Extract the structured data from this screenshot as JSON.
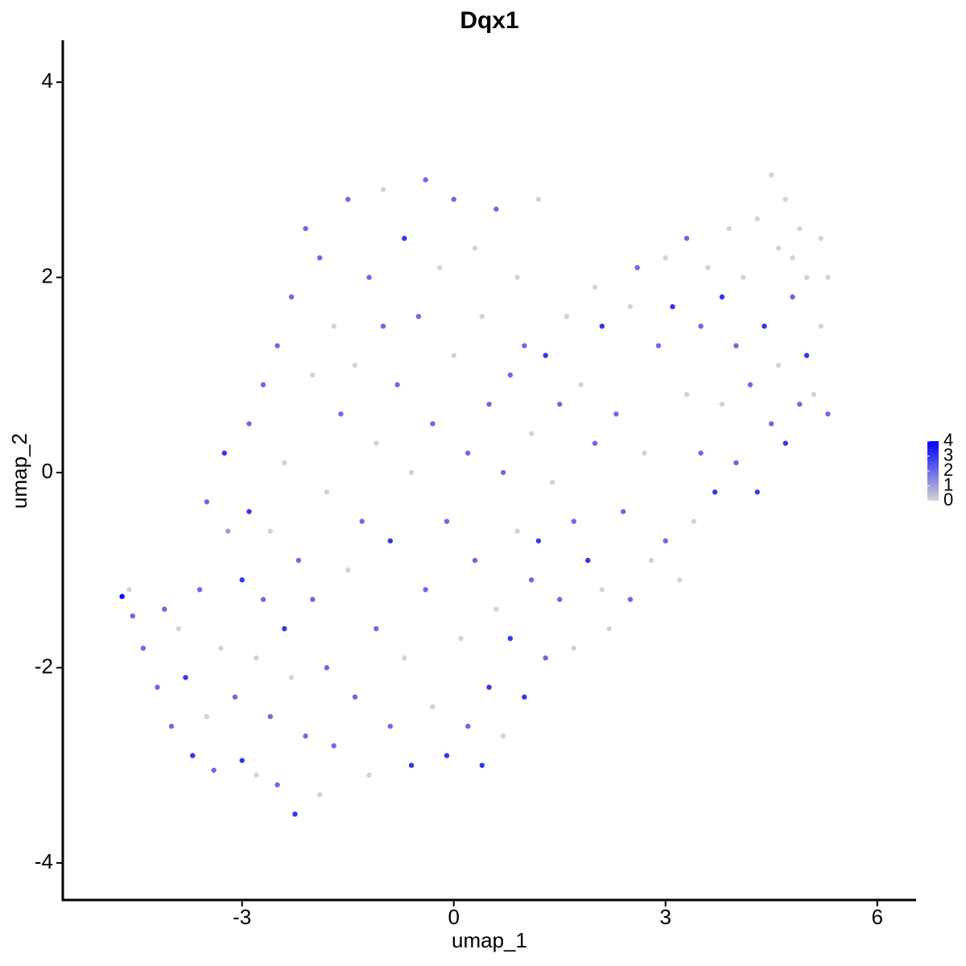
{
  "chart_data": {
    "type": "scatter",
    "title": "Dqx1",
    "x_label": "umap_1",
    "y_label": "umap_2",
    "xlim": [
      -5.54,
      6.55
    ],
    "ylim": [
      -4.38,
      4.43
    ],
    "xticks": [
      -3,
      0,
      3,
      6
    ],
    "yticks": [
      -4,
      -2,
      0,
      2,
      4
    ],
    "color_scale": [
      "#d3d3d3",
      "#0000ff"
    ],
    "clim": [
      0,
      4
    ],
    "cticks": [
      0,
      1,
      2,
      3,
      4
    ],
    "series": [
      {
        "name": "Dqx1",
        "x": [
          -4.7,
          -4.6,
          -4.55,
          -4.4,
          -4.2,
          -4.1,
          -4.0,
          -3.9,
          -3.8,
          -3.7,
          -3.6,
          -3.5,
          -3.5,
          -3.4,
          -3.3,
          -3.25,
          -3.2,
          -3.1,
          -3.0,
          -3.0,
          -2.9,
          -2.9,
          -2.8,
          -2.8,
          -2.7,
          -2.7,
          -2.6,
          -2.6,
          -2.5,
          -2.5,
          -2.4,
          -2.4,
          -2.3,
          -2.3,
          -2.25,
          -2.2,
          -2.1,
          -2.1,
          -2.0,
          -2.0,
          -1.9,
          -1.9,
          -1.8,
          -1.8,
          -1.7,
          -1.7,
          -1.6,
          -1.5,
          -1.5,
          -1.4,
          -1.4,
          -1.3,
          -1.2,
          -1.2,
          -1.1,
          -1.1,
          -1.0,
          -1.0,
          -0.9,
          -0.9,
          -0.8,
          -0.7,
          -0.7,
          -0.6,
          -0.6,
          -0.5,
          -0.4,
          -0.4,
          -0.3,
          -0.3,
          -0.2,
          -0.1,
          -0.1,
          0.0,
          0.0,
          0.1,
          0.2,
          0.2,
          0.3,
          0.3,
          0.4,
          0.4,
          0.5,
          0.5,
          0.6,
          0.6,
          0.7,
          0.7,
          0.8,
          0.8,
          0.9,
          0.9,
          1.0,
          1.0,
          1.1,
          1.1,
          1.2,
          1.2,
          1.3,
          1.3,
          1.4,
          1.5,
          1.5,
          1.6,
          1.7,
          1.7,
          1.8,
          1.9,
          2.0,
          2.0,
          2.1,
          2.1,
          2.2,
          2.3,
          2.4,
          2.5,
          2.5,
          2.6,
          2.7,
          2.8,
          2.9,
          3.0,
          3.0,
          3.1,
          3.2,
          3.3,
          3.3,
          3.4,
          3.5,
          3.5,
          3.6,
          3.7,
          3.8,
          3.8,
          3.9,
          4.0,
          4.0,
          4.1,
          4.2,
          4.3,
          4.3,
          4.4,
          4.5,
          4.5,
          4.6,
          4.6,
          4.7,
          4.7,
          4.8,
          4.8,
          4.9,
          4.9,
          5.0,
          5.0,
          5.1,
          5.2,
          5.2,
          5.3,
          5.3
        ],
        "y": [
          -1.27,
          -1.2,
          -1.47,
          -1.8,
          -2.2,
          -1.4,
          -2.6,
          -1.6,
          -2.1,
          -2.9,
          -1.2,
          -2.5,
          -0.3,
          -3.05,
          -1.8,
          0.2,
          -0.6,
          -2.3,
          -1.1,
          -2.95,
          0.5,
          -0.4,
          -1.9,
          -3.1,
          0.9,
          -1.3,
          -2.5,
          -0.6,
          1.3,
          -3.2,
          -1.6,
          0.1,
          1.8,
          -2.1,
          -3.5,
          -0.9,
          2.5,
          -2.7,
          1.0,
          -1.3,
          -3.3,
          2.2,
          -0.2,
          -2.0,
          1.5,
          -2.8,
          0.6,
          2.8,
          -1.0,
          -2.3,
          1.1,
          -0.5,
          2.0,
          -3.1,
          -1.6,
          0.3,
          1.5,
          2.9,
          -2.6,
          -0.7,
          0.9,
          2.4,
          -1.9,
          -3.0,
          0.0,
          1.6,
          3.0,
          -1.2,
          -2.4,
          0.5,
          2.1,
          -0.5,
          -2.9,
          1.2,
          2.8,
          -1.7,
          0.2,
          -2.6,
          2.3,
          -0.9,
          1.6,
          -3.0,
          -2.2,
          0.7,
          2.7,
          -1.4,
          -2.7,
          0.0,
          1.0,
          -1.7,
          2.0,
          -0.6,
          -2.3,
          1.3,
          -1.1,
          0.4,
          2.8,
          -0.7,
          -1.9,
          1.2,
          -0.1,
          0.7,
          -1.3,
          1.6,
          -0.5,
          -1.8,
          0.9,
          -0.9,
          1.9,
          0.3,
          -1.2,
          1.5,
          -1.6,
          0.6,
          -0.4,
          1.7,
          -1.3,
          2.1,
          0.2,
          -0.9,
          1.3,
          2.2,
          -0.7,
          1.7,
          -1.1,
          2.4,
          0.8,
          -0.5,
          1.5,
          0.2,
          2.1,
          -0.2,
          1.8,
          0.7,
          2.5,
          1.3,
          0.1,
          2.0,
          0.9,
          2.6,
          -0.2,
          1.5,
          3.05,
          0.5,
          2.3,
          1.1,
          2.8,
          0.3,
          1.8,
          2.2,
          0.7,
          2.5,
          1.2,
          2.0,
          0.8,
          2.4,
          1.5,
          2.0,
          0.6
        ],
        "values": [
          4,
          0,
          2,
          2,
          2,
          2,
          2,
          0,
          3,
          3,
          2,
          0,
          2,
          2,
          0,
          3,
          1,
          2,
          3,
          3,
          2,
          3,
          0,
          0,
          2,
          2,
          2,
          0,
          2,
          2,
          3,
          0,
          2,
          0,
          3,
          2,
          2,
          2,
          0,
          2,
          0,
          2,
          0,
          2,
          0,
          2,
          2,
          2,
          0,
          2,
          0,
          2,
          2,
          0,
          2,
          0,
          2,
          0,
          2,
          3,
          2,
          3,
          0,
          3,
          0,
          2,
          2,
          2,
          0,
          2,
          0,
          2,
          3,
          0,
          2,
          0,
          2,
          2,
          0,
          2,
          0,
          3,
          3,
          2,
          2,
          0,
          0,
          2,
          2,
          3,
          0,
          0,
          3,
          2,
          2,
          0,
          0,
          3,
          2,
          3,
          0,
          2,
          2,
          0,
          2,
          0,
          0,
          3,
          0,
          2,
          0,
          3,
          0,
          2,
          2,
          0,
          2,
          2,
          0,
          0,
          2,
          0,
          2,
          3,
          0,
          2,
          0,
          0,
          2,
          2,
          0,
          3,
          3,
          0,
          0,
          2,
          2,
          0,
          2,
          0,
          3,
          3,
          0,
          2,
          0,
          0,
          0,
          3,
          2,
          0,
          2,
          0,
          3,
          0,
          0,
          0,
          0,
          0,
          2
        ]
      }
    ]
  }
}
